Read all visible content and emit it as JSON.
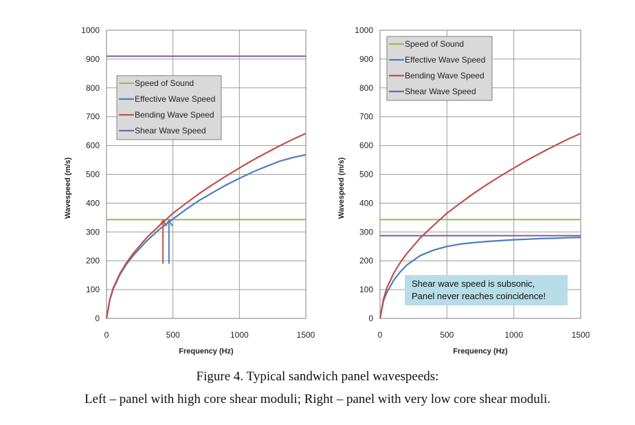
{
  "caption": {
    "line1": "Figure 4.   Typical sandwich panel wavespeeds:",
    "line2": "Left – panel with high core shear moduli; Right – panel with very low core shear moduli."
  },
  "colors": {
    "sound": "#9bbb59",
    "effective": "#4a7ebb",
    "bending": "#c0504d",
    "shear": "#8064a2",
    "annotation_bg": "#b7dde8"
  },
  "chart_data": [
    {
      "type": "line",
      "panel": "left",
      "xlabel": "Frequency (Hz)",
      "ylabel": "Wavespeed (m/s)",
      "xlim": [
        0,
        1500
      ],
      "ylim": [
        0,
        1000
      ],
      "xticks": [
        "0",
        "500",
        "1000",
        "1500"
      ],
      "yticks": [
        "0",
        "100",
        "200",
        "300",
        "400",
        "500",
        "600",
        "700",
        "800",
        "900",
        "1000"
      ],
      "grid": true,
      "legend_position": "upper-left",
      "legend": [
        "Speed of Sound",
        "Effective Wave Speed",
        "Bending Wave Speed",
        "Shear Wave Speed"
      ],
      "series": [
        {
          "name": "Speed of Sound",
          "color_key": "sound",
          "x": [
            0,
            1500
          ],
          "y": [
            343,
            343
          ]
        },
        {
          "name": "Effective Wave Speed",
          "color_key": "effective",
          "x": [
            0,
            25,
            50,
            100,
            150,
            200,
            300,
            400,
            500,
            600,
            700,
            800,
            900,
            1000,
            1100,
            1200,
            1300,
            1400,
            1500
          ],
          "y": [
            0,
            64,
            102,
            151,
            188,
            218,
            268,
            310,
            345,
            379,
            410,
            437,
            463,
            486,
            508,
            527,
            545,
            558,
            568
          ]
        },
        {
          "name": "Bending Wave Speed",
          "color_key": "bending",
          "x": [
            0,
            25,
            50,
            100,
            150,
            200,
            300,
            400,
            500,
            600,
            700,
            800,
            900,
            1000,
            1100,
            1200,
            1300,
            1400,
            1500
          ],
          "y": [
            0,
            66,
            105,
            155,
            193,
            225,
            279,
            323,
            365,
            400,
            434,
            465,
            494,
            522,
            549,
            574,
            598,
            621,
            642
          ]
        },
        {
          "name": "Shear Wave Speed",
          "color_key": "shear",
          "x": [
            0,
            1500
          ],
          "y": [
            910,
            910
          ]
        }
      ],
      "annotations": [
        {
          "type": "arrow",
          "color_key": "bending",
          "x": 425,
          "y_from": 190,
          "y_to": 340
        },
        {
          "type": "arrow",
          "color_key": "effective",
          "x": 470,
          "y_from": 190,
          "y_to": 340
        }
      ]
    },
    {
      "type": "line",
      "panel": "right",
      "xlabel": "Frequency (Hz)",
      "ylabel": "Wavespeed (m/s)",
      "xlim": [
        0,
        1500
      ],
      "ylim": [
        0,
        1000
      ],
      "xticks": [
        "0",
        "500",
        "1000",
        "1500"
      ],
      "yticks": [
        "0",
        "100",
        "200",
        "300",
        "400",
        "500",
        "600",
        "700",
        "800",
        "900",
        "1000"
      ],
      "grid": true,
      "legend_position": "upper-left",
      "legend": [
        "Speed of Sound",
        "Effective Wave Speed",
        "Bending Wave Speed",
        "Shear Wave Speed"
      ],
      "series": [
        {
          "name": "Speed of Sound",
          "color_key": "sound",
          "x": [
            0,
            1500
          ],
          "y": [
            343,
            343
          ]
        },
        {
          "name": "Effective Wave Speed",
          "color_key": "effective",
          "x": [
            0,
            25,
            50,
            100,
            150,
            200,
            300,
            400,
            500,
            600,
            700,
            800,
            900,
            1000,
            1100,
            1200,
            1300,
            1400,
            1500
          ],
          "y": [
            0,
            60,
            89,
            131,
            161,
            185,
            218,
            237,
            250,
            258,
            263,
            267,
            270,
            273,
            275,
            277,
            278,
            280,
            281
          ]
        },
        {
          "name": "Bending Wave Speed",
          "color_key": "bending",
          "x": [
            0,
            25,
            50,
            100,
            150,
            200,
            300,
            400,
            500,
            600,
            700,
            800,
            900,
            1000,
            1100,
            1200,
            1300,
            1400,
            1500
          ],
          "y": [
            0,
            66,
            105,
            155,
            193,
            225,
            279,
            323,
            365,
            400,
            434,
            465,
            494,
            522,
            549,
            574,
            598,
            621,
            642
          ]
        },
        {
          "name": "Shear Wave Speed",
          "color_key": "shear",
          "x": [
            0,
            1500
          ],
          "y": [
            287,
            287
          ]
        }
      ],
      "text_box": [
        "Shear wave speed is subsonic,",
        "Panel never reaches coincidence!"
      ]
    }
  ]
}
